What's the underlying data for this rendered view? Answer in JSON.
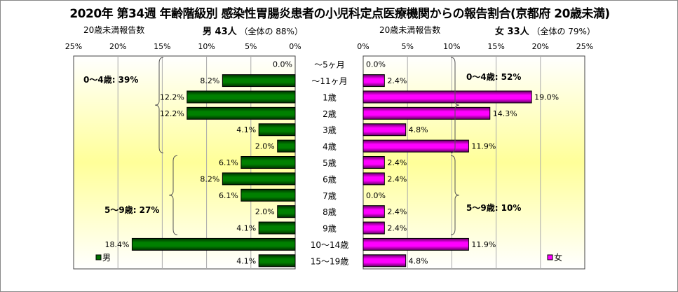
{
  "chart_data": {
    "type": "bar",
    "title": "2020年 第34週 年齢階級別 感染性胃腸炎患者の小児科定点医療機関からの報告割合(京都府 20歳未満)",
    "categories": [
      "～5ヶ月",
      "～11ヶ月",
      "1歳",
      "2歳",
      "3歳",
      "4歳",
      "5歳",
      "6歳",
      "7歳",
      "8歳",
      "9歳",
      "10～14歳",
      "15～19歳"
    ],
    "xlim": [
      0,
      25
    ],
    "ticks": [
      "0%",
      "5%",
      "10%",
      "15%",
      "20%",
      "25%"
    ],
    "tick_values": [
      0,
      5,
      10,
      15,
      20,
      25
    ],
    "grid": true,
    "series": [
      {
        "name": "男",
        "color": "#007000",
        "header_label": "20歳未満報告数",
        "header_total": "男 43人",
        "header_share": "（全体の 88%）",
        "values": [
          0.0,
          8.2,
          12.2,
          12.2,
          4.1,
          2.0,
          6.1,
          8.2,
          6.1,
          2.0,
          4.1,
          18.4,
          4.1
        ],
        "labels": [
          "0.0%",
          "8.2%",
          "12.2%",
          "12.2%",
          "4.1%",
          "2.0%",
          "6.1%",
          "8.2%",
          "6.1%",
          "2.0%",
          "4.1%",
          "18.4%",
          "4.1%"
        ],
        "group_annotations": [
          "0～4歳: 39%",
          "5～9歳: 27%"
        ],
        "legend_position": "bottom-left"
      },
      {
        "name": "女",
        "color": "#ff00ff",
        "header_label": "20歳未満報告数",
        "header_total": "女 33人",
        "header_share": "（全体の 79%）",
        "values": [
          0.0,
          2.4,
          19.0,
          14.3,
          4.8,
          11.9,
          2.4,
          2.4,
          0.0,
          2.4,
          2.4,
          11.9,
          4.8
        ],
        "labels": [
          "0.0%",
          "2.4%",
          "19.0%",
          "14.3%",
          "4.8%",
          "11.9%",
          "2.4%",
          "2.4%",
          "0.0%",
          "2.4%",
          "2.4%",
          "11.9%",
          "4.8%"
        ],
        "group_annotations": [
          "0～4歳: 52%",
          "5～9歳: 10%"
        ],
        "legend_position": "bottom-right"
      }
    ]
  }
}
